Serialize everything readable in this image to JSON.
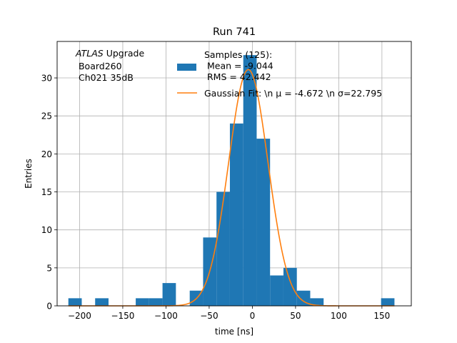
{
  "chart_data": {
    "type": "bar",
    "title": "Run 741",
    "xlabel": "time [ns]",
    "ylabel": "Entries",
    "xlim": [
      -226,
      184
    ],
    "ylim": [
      0,
      34.8
    ],
    "xticks": [
      -200,
      -150,
      -100,
      -50,
      0,
      50,
      100,
      150
    ],
    "yticks": [
      0,
      5,
      10,
      15,
      20,
      25,
      30
    ],
    "grid": true,
    "annotation": {
      "italic": "ATLAS",
      "line1_rest": " Upgrade",
      "line2": " Board260",
      "line3": " Ch021 35dB"
    },
    "bin_width": 15.5,
    "bins": [
      {
        "x0": -213,
        "count": 1
      },
      {
        "x0": -182,
        "count": 1
      },
      {
        "x0": -135,
        "count": 1
      },
      {
        "x0": -119.5,
        "count": 1
      },
      {
        "x0": -104,
        "count": 3
      },
      {
        "x0": -72.5,
        "count": 2
      },
      {
        "x0": -57,
        "count": 9
      },
      {
        "x0": -41.5,
        "count": 15
      },
      {
        "x0": -26,
        "count": 24
      },
      {
        "x0": -10.5,
        "count": 33
      },
      {
        "x0": 5,
        "count": 22
      },
      {
        "x0": 20.5,
        "count": 4
      },
      {
        "x0": 36,
        "count": 5
      },
      {
        "x0": 51.5,
        "count": 2
      },
      {
        "x0": 67,
        "count": 1
      },
      {
        "x0": 149,
        "count": 1
      }
    ],
    "fit": {
      "mu": -4.672,
      "sigma": 22.795,
      "amplitude": 31.1,
      "x_range": [
        -213,
        164.5
      ]
    },
    "series": [
      {
        "name": "Samples (125):\n Mean = -9.044\n RMS = 42.442",
        "color": "#1f77b4"
      },
      {
        "name": "Gaussian Fit: \\n μ = -4.672 \\n σ=22.795",
        "color": "#ff7f0e"
      }
    ],
    "legend_placement": "top-right"
  }
}
